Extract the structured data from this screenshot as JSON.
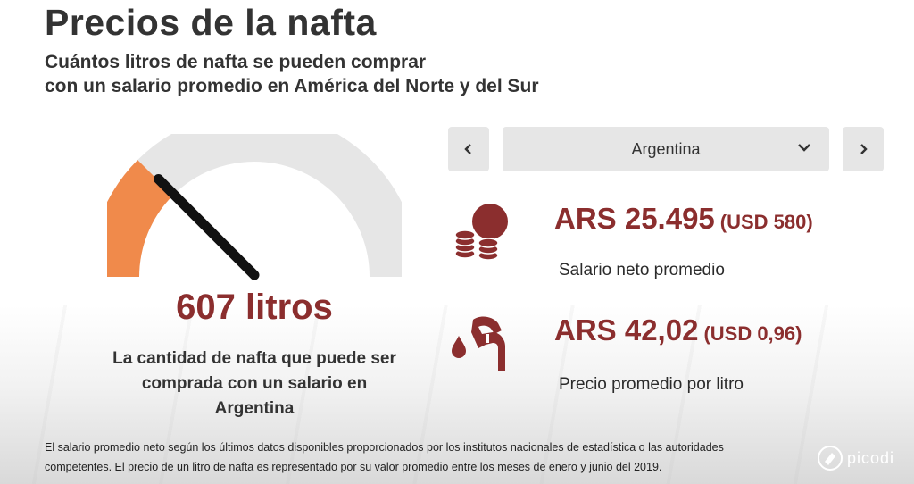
{
  "header": {
    "title": "Precios de la nafta",
    "subtitle_line1": "Cuántos litros de nafta se pueden comprar",
    "subtitle_line2": "con un salario promedio en América del Norte y del Sur"
  },
  "gauge": {
    "value_text": "607 litros",
    "fraction": 0.25,
    "caption_line1": "La cantidad de nafta que puede ser",
    "caption_line2": "comprada con un salario en",
    "caption_line3": "Argentina",
    "track_color": "#e6e6e6",
    "fill_color": "#f08a4b",
    "needle_color": "#111111"
  },
  "selector": {
    "prev_icon": "chevron-left-icon",
    "next_icon": "chevron-right-icon",
    "selected": "Argentina",
    "prev_label": "‹",
    "next_label": "›"
  },
  "stats": {
    "salary": {
      "icon": "coins-icon",
      "value": "ARS 25.495",
      "usd": "(USD 580)",
      "label": "Salario neto promedio"
    },
    "price": {
      "icon": "fuel-nozzle-icon",
      "value": "ARS 42,02",
      "usd": "(USD 0,96)",
      "label": "Precio promedio por litro"
    }
  },
  "footnote": {
    "line1": "El salario promedio neto según los últimos datos disponibles proporcionados por los institutos nacionales de estadística o las autoridades",
    "line2": "competentes. El precio de un litro de nafta es representado por su valor promedio entre los meses de enero y junio del 2019."
  },
  "logo": {
    "text": "picodi"
  },
  "colors": {
    "accent": "#8b2e2e",
    "gauge_fill": "#f08a4b"
  }
}
